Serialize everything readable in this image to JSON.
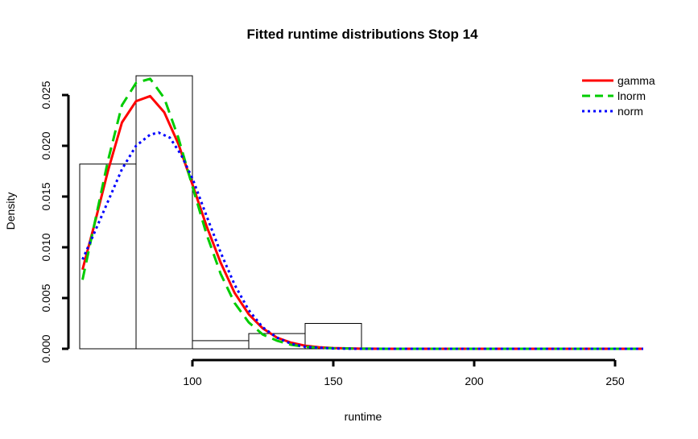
{
  "chart_data": {
    "type": "histogram",
    "title": "Fitted runtime distributions Stop 14",
    "xlabel": "runtime",
    "ylabel": "Density",
    "xlim": [
      60,
      260
    ],
    "ylim": [
      0,
      0.027
    ],
    "x_ticks": [
      100,
      150,
      200,
      250
    ],
    "y_ticks": [
      0.0,
      0.005,
      0.01,
      0.015,
      0.02,
      0.025
    ],
    "y_tick_labels": [
      "0.000",
      "0.005",
      "0.010",
      "0.015",
      "0.020",
      "0.025"
    ],
    "x_axis_range": [
      100,
      250
    ],
    "y_axis_range": [
      0.0,
      0.025
    ],
    "grid": false,
    "legend_position": "top-right",
    "histogram": {
      "bins": [
        {
          "from": 60,
          "to": 80,
          "density": 0.0182
        },
        {
          "from": 80,
          "to": 100,
          "density": 0.0269
        },
        {
          "from": 100,
          "to": 120,
          "density": 0.0008
        },
        {
          "from": 120,
          "to": 140,
          "density": 0.0015
        },
        {
          "from": 140,
          "to": 160,
          "density": 0.0025
        }
      ]
    },
    "series": [
      {
        "name": "gamma",
        "color": "#ff0000",
        "style": "solid",
        "x": [
          61,
          65,
          70,
          75,
          80,
          85,
          90,
          95,
          100,
          105,
          110,
          115,
          120,
          125,
          130,
          135,
          140,
          145,
          150,
          160,
          170,
          180,
          200,
          220,
          240,
          260
        ],
        "y": [
          0.0078,
          0.012,
          0.0175,
          0.0223,
          0.0244,
          0.0249,
          0.0233,
          0.0202,
          0.0162,
          0.0121,
          0.0085,
          0.0055,
          0.0034,
          0.002,
          0.0011,
          0.0006,
          0.0003,
          0.00015,
          7e-05,
          1e-05,
          0,
          0,
          0,
          0,
          0,
          0
        ]
      },
      {
        "name": "lnorm",
        "color": "#00cc00",
        "style": "dashed",
        "x": [
          61,
          65,
          70,
          75,
          80,
          85,
          90,
          95,
          100,
          105,
          110,
          115,
          120,
          125,
          130,
          135,
          140,
          145,
          150,
          160,
          170,
          180,
          200,
          220,
          240,
          260
        ],
        "y": [
          0.0068,
          0.012,
          0.0185,
          0.024,
          0.0262,
          0.0266,
          0.0247,
          0.0208,
          0.016,
          0.0113,
          0.0074,
          0.0045,
          0.0026,
          0.0014,
          0.0008,
          0.0004,
          0.0002,
          0.0001,
          5e-05,
          1e-05,
          0,
          0,
          0,
          0,
          0,
          0
        ]
      },
      {
        "name": "norm",
        "color": "#0000ff",
        "style": "dotted",
        "x": [
          61,
          65,
          70,
          75,
          80,
          85,
          88,
          92,
          96,
          100,
          105,
          110,
          115,
          120,
          125,
          130,
          135,
          140,
          145,
          150,
          155,
          160,
          170,
          180,
          200,
          220,
          240,
          260
        ],
        "y": [
          0.0088,
          0.0113,
          0.0145,
          0.0177,
          0.02,
          0.0211,
          0.0213,
          0.0208,
          0.0191,
          0.0168,
          0.0131,
          0.0095,
          0.0063,
          0.0038,
          0.0021,
          0.0011,
          0.0005,
          0.0002,
          0.0001,
          3e-05,
          1e-05,
          0,
          0,
          0,
          0,
          0,
          0,
          0
        ]
      }
    ]
  }
}
